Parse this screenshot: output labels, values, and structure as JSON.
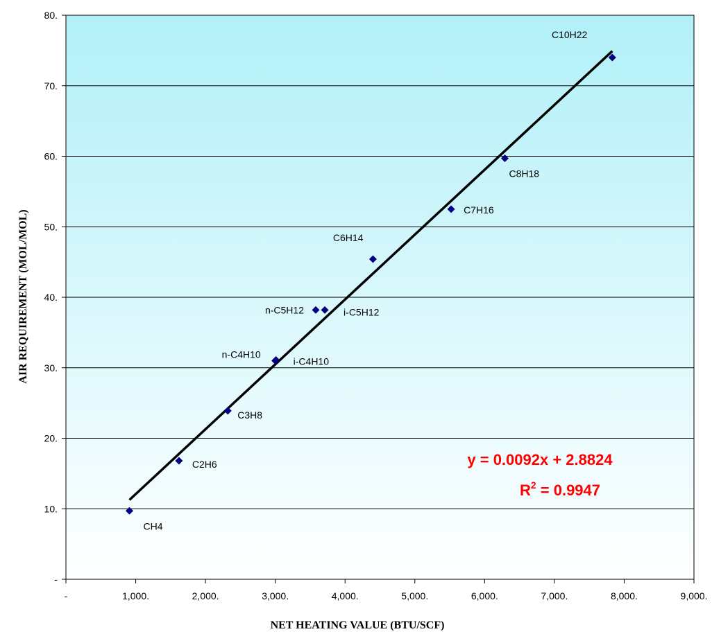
{
  "chart_data": {
    "type": "scatter",
    "xlabel": "NET HEATING VALUE (BTU/SCF)",
    "ylabel": "AIR REQUIREMENT (MOL/MOL)",
    "xlim": [
      0,
      9000
    ],
    "ylim": [
      0,
      80
    ],
    "x_ticks": [
      "-",
      "1,000.",
      "2,000.",
      "3,000.",
      "4,000.",
      "5,000.",
      "6,000.",
      "7,000.",
      "8,000.",
      "9,000."
    ],
    "y_ticks": [
      "-",
      "10.",
      "20.",
      "30.",
      "40.",
      "50.",
      "60.",
      "70.",
      "80."
    ],
    "grid": "horizontal",
    "points": [
      {
        "label": "CH4",
        "x": 910,
        "y": 9.7
      },
      {
        "label": "C2H6",
        "x": 1620,
        "y": 16.8
      },
      {
        "label": "C3H8",
        "x": 2320,
        "y": 23.9
      },
      {
        "label": "i-C4H10",
        "x": 3000,
        "y": 31.0
      },
      {
        "label": "n-C4H10",
        "x": 3010,
        "y": 31.1
      },
      {
        "label": "n-C5H12",
        "x": 3580,
        "y": 38.2
      },
      {
        "label": "i-C5H12",
        "x": 3710,
        "y": 38.2
      },
      {
        "label": "C6H14",
        "x": 4400,
        "y": 45.4
      },
      {
        "label": "C7H16",
        "x": 5520,
        "y": 52.5
      },
      {
        "label": "C8H18",
        "x": 6290,
        "y": 59.7
      },
      {
        "label": "C10H22",
        "x": 7830,
        "y": 74.0
      }
    ],
    "trendline": {
      "slope": 0.0092,
      "intercept": 2.8824,
      "x_range": [
        910,
        7830
      ],
      "equation": "y = 0.0092x + 2.8824",
      "r2_prefix": "R",
      "r2_sup": "2",
      "r2_value": " = 0.9947"
    },
    "colors": {
      "marker": "#000080",
      "trendline": "#000000",
      "equation": "#ff0000",
      "plot_top": "#b2f0f8",
      "plot_bottom": "#ffffff"
    }
  }
}
